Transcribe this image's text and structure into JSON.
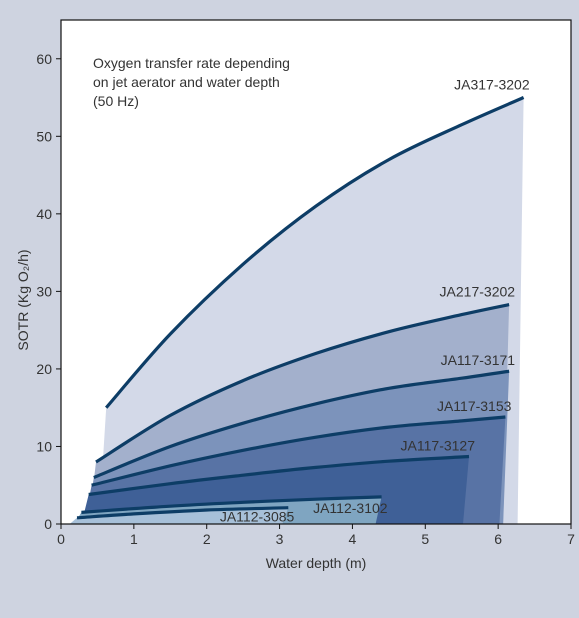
{
  "chart_data": {
    "type": "area",
    "title_lines": [
      "Oxygen transfer rate depending",
      "on jet aerator and water depth",
      "(50 Hz)"
    ],
    "xlabel": "Water depth (m)",
    "ylabel": "SOTR (Kg O₂/h)",
    "xlim": [
      0,
      7
    ],
    "ylim": [
      0,
      65
    ],
    "xticks": [
      "0",
      "1",
      "2",
      "3",
      "4",
      "5",
      "6",
      "7"
    ],
    "yticks": [
      "0",
      "10",
      "20",
      "30",
      "40",
      "50",
      "60"
    ],
    "grid": false,
    "series": [
      {
        "name": "JA317-3202",
        "x": [
          0.62,
          1.5,
          2.5,
          3.5,
          4.5,
          5.5,
          6.35
        ],
        "y": [
          15,
          24.5,
          33.5,
          41,
          47,
          51.5,
          55
        ],
        "fill": "#d3d9e8"
      },
      {
        "name": "JA217-3202",
        "x": [
          0.48,
          1.5,
          2.5,
          3.5,
          4.5,
          5.5,
          6.15
        ],
        "y": [
          8,
          14,
          18.5,
          22,
          24.8,
          27,
          28.3
        ],
        "fill": "#a3b0cc"
      },
      {
        "name": "JA117-3171",
        "x": [
          0.45,
          1.5,
          2.5,
          3.5,
          4.5,
          5.5,
          6.15
        ],
        "y": [
          6,
          10,
          13,
          15.5,
          17.5,
          18.8,
          19.7
        ],
        "fill": "#7c93bb"
      },
      {
        "name": "JA117-3153",
        "x": [
          0.42,
          1.5,
          2.5,
          3.5,
          4.5,
          5.5,
          6.1
        ],
        "y": [
          5,
          7.5,
          9.5,
          11.2,
          12.5,
          13.3,
          13.8
        ],
        "fill": "#5873a5"
      },
      {
        "name": "JA117-3127",
        "x": [
          0.38,
          1.5,
          2.5,
          3.5,
          4.5,
          5.6
        ],
        "y": [
          3.8,
          5.2,
          6.3,
          7.3,
          8.1,
          8.7
        ],
        "fill": "#3f6097"
      },
      {
        "name": "JA112-3102",
        "x": [
          0.28,
          1.5,
          2.5,
          3.5,
          4.4
        ],
        "y": [
          1.5,
          2.3,
          2.8,
          3.2,
          3.5
        ],
        "fill": "#7fa5c1"
      },
      {
        "name": "JA112-3085",
        "x": [
          0.22,
          1.0,
          2.0,
          3.12
        ],
        "y": [
          0.8,
          1.3,
          1.8,
          2.1
        ],
        "fill": "#a7c0d9"
      }
    ]
  }
}
